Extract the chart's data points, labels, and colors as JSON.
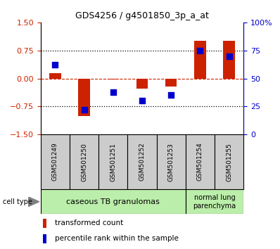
{
  "title": "GDS4256 / g4501850_3p_a_at",
  "samples": [
    "GSM501249",
    "GSM501250",
    "GSM501251",
    "GSM501252",
    "GSM501253",
    "GSM501254",
    "GSM501255"
  ],
  "transformed_count": [
    0.15,
    -1.0,
    -0.03,
    -0.28,
    -0.22,
    1.0,
    1.0
  ],
  "percentile_rank": [
    62,
    22,
    38,
    30,
    35,
    75,
    70
  ],
  "left_ylim": [
    -1.5,
    1.5
  ],
  "right_ylim": [
    0,
    100
  ],
  "left_yticks": [
    -1.5,
    -0.75,
    0,
    0.75,
    1.5
  ],
  "right_yticks": [
    0,
    25,
    50,
    75,
    100
  ],
  "right_yticklabels": [
    "0",
    "25",
    "50",
    "75",
    "100%"
  ],
  "hlines_dotted": [
    0.75,
    -0.75
  ],
  "hline_dashed": 0,
  "bar_color": "#cc2200",
  "dot_color": "#0000cc",
  "group1_indices": [
    0,
    1,
    2,
    3,
    4
  ],
  "group1_label": "caseous TB granulomas",
  "group1_color": "#bbeeaa",
  "group2_indices": [
    5,
    6
  ],
  "group2_label": "normal lung\nparenchyma",
  "group2_color": "#bbeeaa",
  "legend_red_label": "transformed count",
  "legend_blue_label": "percentile rank within the sample",
  "cell_type_label": "cell type",
  "bar_width": 0.4,
  "dot_size": 35,
  "sample_box_color": "#cccccc",
  "title_fontsize": 9,
  "tick_fontsize": 8,
  "sample_fontsize": 6.5,
  "group_fontsize": 8,
  "legend_fontsize": 7.5
}
